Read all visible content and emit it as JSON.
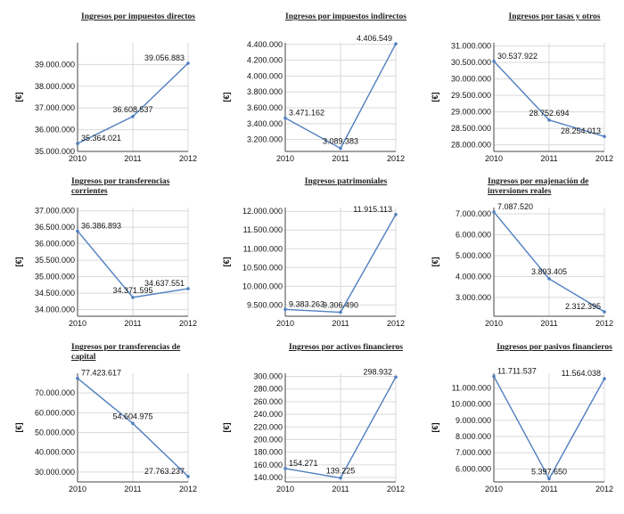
{
  "chart_data": [
    {
      "type": "line",
      "title": "Ingresos por impuestos directos",
      "ylabel": "[€]",
      "categories": [
        "2010",
        "2011",
        "2012"
      ],
      "values": [
        35364021,
        36608537,
        39056883
      ],
      "value_labels": [
        "35.364.021",
        "36.608.537",
        "39.056.883"
      ],
      "ylim": [
        35000000,
        40000000
      ],
      "yticks": [
        35000000,
        36000000,
        37000000,
        38000000,
        39000000
      ],
      "ytick_labels": [
        "35.000.000",
        "36.000.000",
        "37.000.000",
        "38.000.000",
        "39.000.000"
      ]
    },
    {
      "type": "line",
      "title": "Ingresos por impuestos indirectos",
      "ylabel": "[€]",
      "categories": [
        "2010",
        "2011",
        "2012"
      ],
      "values": [
        3471162,
        3089383,
        4406549
      ],
      "value_labels": [
        "3.471.162",
        "3.089.383",
        "4.406.549"
      ],
      "ylim": [
        3050000,
        4420000
      ],
      "yticks": [
        3200000,
        3400000,
        3600000,
        3800000,
        4000000,
        4200000,
        4400000
      ],
      "ytick_labels": [
        "3.200.000",
        "3.400.000",
        "3.600.000",
        "3.800.000",
        "4.000.000",
        "4.200.000",
        "4.400.000"
      ]
    },
    {
      "type": "line",
      "title": "Ingresos por tasas y otros",
      "ylabel": "[€]",
      "categories": [
        "2010",
        "2011",
        "2012"
      ],
      "values": [
        30537922,
        28752694,
        28254013
      ],
      "value_labels": [
        "30.537.922",
        "28.752.694",
        "28.254.013"
      ],
      "ylim": [
        27800000,
        31100000
      ],
      "yticks": [
        28000000,
        28500000,
        29000000,
        29500000,
        30000000,
        30500000,
        31000000
      ],
      "ytick_labels": [
        "28.000.000",
        "28.500.000",
        "29.000.000",
        "29.500.000",
        "30.000.000",
        "30.500.000",
        "31.000.000"
      ]
    },
    {
      "type": "line",
      "title": "Ingresos por transferencias corrientes",
      "ylabel": "[€]",
      "categories": [
        "2010",
        "2011",
        "2012"
      ],
      "values": [
        36386893,
        34371595,
        34637551
      ],
      "value_labels": [
        "36.386.893",
        "34.371.595",
        "34.637.551"
      ],
      "ylim": [
        33800000,
        37100000
      ],
      "yticks": [
        34000000,
        34500000,
        35000000,
        35500000,
        36000000,
        36500000,
        37000000
      ],
      "ytick_labels": [
        "34.000.000",
        "34.500.000",
        "35.000.000",
        "35.500.000",
        "36.000.000",
        "36.500.000",
        "37.000.000"
      ]
    },
    {
      "type": "line",
      "title": "Ingresos patrimoniales",
      "ylabel": "[€]",
      "categories": [
        "2010",
        "2011",
        "2012"
      ],
      "values": [
        9383263,
        9306490,
        11915113
      ],
      "value_labels": [
        "9.383.263",
        "9.306.490",
        "11.915.113"
      ],
      "ylim": [
        9200000,
        12100000
      ],
      "yticks": [
        9500000,
        10000000,
        10500000,
        11000000,
        11500000,
        12000000
      ],
      "ytick_labels": [
        "9.500.000",
        "10.000.000",
        "10.500.000",
        "11.000.000",
        "11.500.000",
        "12.000.000"
      ]
    },
    {
      "type": "line",
      "title": "Ingresos por enajenación de inversiones reales",
      "ylabel": "[€]",
      "categories": [
        "2010",
        "2011",
        "2012"
      ],
      "values": [
        7087520,
        3893405,
        2312395
      ],
      "value_labels": [
        "7.087.520",
        "3.893.405",
        "2.312.395"
      ],
      "ylim": [
        2100000,
        7300000
      ],
      "yticks": [
        3000000,
        4000000,
        5000000,
        6000000,
        7000000
      ],
      "ytick_labels": [
        "3.000.000",
        "4.000.000",
        "5.000.000",
        "6.000.000",
        "7.000.000"
      ]
    },
    {
      "type": "line",
      "title": "Ingresos por transferencias de capital",
      "ylabel": "[€]",
      "categories": [
        "2010",
        "2011",
        "2012"
      ],
      "values": [
        77423617,
        54604975,
        27763237
      ],
      "value_labels": [
        "77.423.617",
        "54.604.975",
        "27.763.237"
      ],
      "ylim": [
        25000000,
        80000000
      ],
      "yticks": [
        30000000,
        40000000,
        50000000,
        60000000,
        70000000
      ],
      "ytick_labels": [
        "30.000.000",
        "40.000.000",
        "50.000.000",
        "60.000.000",
        "70.000.000"
      ]
    },
    {
      "type": "line",
      "title": "Ingresos por activos financieros",
      "ylabel": "[€]",
      "categories": [
        "2010",
        "2011",
        "2012"
      ],
      "values": [
        154271,
        139225,
        298932
      ],
      "value_labels": [
        "154.271",
        "139.225",
        "298.932"
      ],
      "ylim": [
        133000,
        305000
      ],
      "yticks": [
        140000,
        160000,
        180000,
        200000,
        220000,
        240000,
        260000,
        280000,
        300000
      ],
      "ytick_labels": [
        "140.000",
        "160.000",
        "180.000",
        "200.000",
        "220.000",
        "240.000",
        "260.000",
        "280.000",
        "300.000"
      ]
    },
    {
      "type": "line",
      "title": "Ingresos por pasivos financieros",
      "ylabel": "[€]",
      "categories": [
        "2010",
        "2011",
        "2012"
      ],
      "values": [
        11711537,
        5397650,
        11564038
      ],
      "value_labels": [
        "11.711.537",
        "5.397.650",
        "11.564.038"
      ],
      "ylim": [
        5200000,
        11900000
      ],
      "yticks": [
        6000000,
        7000000,
        8000000,
        9000000,
        10000000,
        11000000
      ],
      "ytick_labels": [
        "6.000.000",
        "7.000.000",
        "8.000.000",
        "9.000.000",
        "10.000.000",
        "11.000.000"
      ]
    }
  ]
}
